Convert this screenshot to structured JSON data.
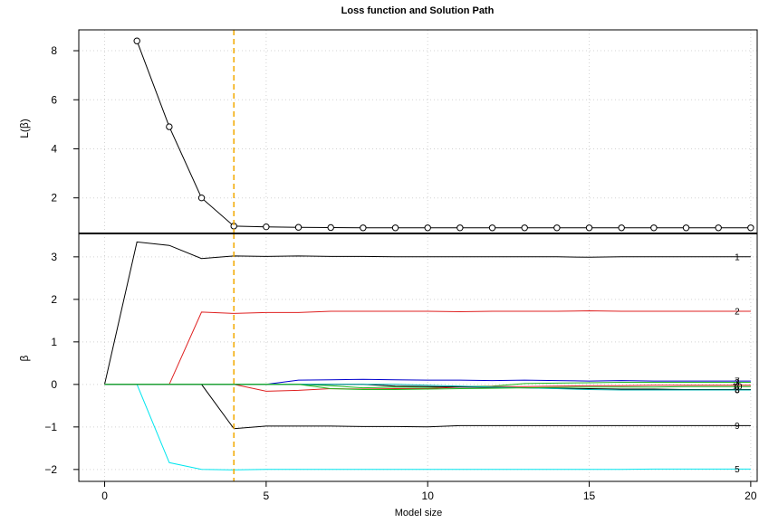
{
  "colors": {
    "axis": "#000000",
    "grid": "#d3d3d3",
    "marker": "#f2a900",
    "loss_line": "#000000"
  },
  "chart_data": [
    {
      "type": "line",
      "panel": "loss",
      "title": "Loss function and Solution Path",
      "xlabel": "",
      "ylabel": "L(β)",
      "xlim": [
        -0.8,
        20.2
      ],
      "ylim": [
        0.55,
        8.85
      ],
      "xticks": [
        0,
        5,
        10,
        15,
        20
      ],
      "yticks": [
        2,
        4,
        6,
        8
      ],
      "grid": true,
      "marker_x": 4,
      "series": [
        {
          "color": "#000000",
          "points": "open-circle",
          "x": [
            1,
            2,
            3,
            4,
            5,
            6,
            7,
            8,
            9,
            10,
            11,
            12,
            13,
            14,
            15,
            16,
            17,
            18,
            19,
            20
          ],
          "values": [
            8.4,
            4.9,
            2.0,
            0.85,
            0.82,
            0.8,
            0.79,
            0.78,
            0.78,
            0.78,
            0.78,
            0.78,
            0.78,
            0.78,
            0.78,
            0.78,
            0.78,
            0.78,
            0.78,
            0.78
          ]
        }
      ]
    },
    {
      "type": "line",
      "panel": "path",
      "title": "",
      "xlabel": "Model size",
      "ylabel": "β",
      "xlim": [
        -0.8,
        20.2
      ],
      "ylim": [
        -2.28,
        3.55
      ],
      "xticks": [
        0,
        5,
        10,
        15,
        20
      ],
      "yticks": [
        -2,
        -1,
        0,
        1,
        2,
        3
      ],
      "grid": true,
      "marker_x": 4,
      "x": [
        0,
        1,
        2,
        3,
        4,
        5,
        6,
        7,
        8,
        9,
        10,
        11,
        12,
        13,
        14,
        15,
        16,
        17,
        18,
        19,
        20
      ],
      "series": [
        {
          "label": "1",
          "color": "#000000",
          "values": [
            0,
            3.35,
            3.27,
            2.96,
            3.02,
            3.01,
            3.02,
            3.01,
            3.01,
            3.0,
            3.0,
            3.0,
            3.0,
            3.0,
            3.0,
            2.99,
            3.0,
            3.0,
            3.0,
            3.0,
            3.0
          ]
        },
        {
          "label": "2",
          "color": "#df2020",
          "values": [
            0,
            0,
            0,
            1.7,
            1.67,
            1.69,
            1.69,
            1.72,
            1.72,
            1.72,
            1.72,
            1.71,
            1.72,
            1.72,
            1.72,
            1.73,
            1.72,
            1.72,
            1.72,
            1.72,
            1.72
          ]
        },
        {
          "label": "9",
          "color": "#000000",
          "values": [
            0,
            0,
            0,
            0,
            -1.04,
            -0.98,
            -0.98,
            -0.98,
            -0.99,
            -0.99,
            -1.0,
            -0.97,
            -0.97,
            -0.97,
            -0.97,
            -0.97,
            -0.97,
            -0.97,
            -0.97,
            -0.97,
            -0.97
          ]
        },
        {
          "label": "5",
          "color": "#00e5ee",
          "values": [
            0,
            0,
            -1.84,
            -2.0,
            -2.01,
            -2.0,
            -2.0,
            -2.0,
            -2.0,
            -2.0,
            -2.0,
            -2.0,
            -2.0,
            -2.0,
            -2.0,
            -2.0,
            -2.0,
            -1.99,
            -1.99,
            -1.99,
            -1.99
          ]
        },
        {
          "label": "7",
          "color": "#0000cd",
          "values": [
            0,
            0,
            0,
            0,
            0,
            0,
            0.1,
            0.11,
            0.12,
            0.11,
            0.1,
            0.1,
            0.09,
            0.1,
            0.09,
            0.08,
            0.09,
            0.08,
            0.08,
            0.08,
            0.08
          ]
        },
        {
          "label": "3",
          "color": "#1eb81e",
          "values": [
            0,
            0,
            0,
            0,
            0,
            0,
            0,
            -0.03,
            -0.08,
            -0.06,
            -0.07,
            -0.05,
            -0.04,
            0.02,
            0.03,
            0.04,
            0.05,
            0.05,
            0.05,
            0.05,
            0.05
          ]
        },
        {
          "label": "4",
          "color": "#df2020",
          "values": [
            0,
            0,
            0,
            0,
            0,
            -0.16,
            -0.14,
            -0.1,
            -0.11,
            -0.1,
            -0.1,
            -0.06,
            -0.05,
            -0.05,
            -0.04,
            -0.03,
            -0.03,
            -0.02,
            -0.02,
            -0.02,
            -0.02
          ]
        },
        {
          "label": "6",
          "color": "#000000",
          "values": [
            0,
            0,
            0,
            0,
            0,
            0,
            0,
            0,
            0,
            -0.04,
            -0.05,
            -0.06,
            -0.07,
            -0.08,
            -0.09,
            -0.1,
            -0.11,
            -0.11,
            -0.12,
            -0.12,
            -0.12
          ]
        },
        {
          "label": "8",
          "color": "#00b0b0",
          "values": [
            0,
            0,
            0,
            0,
            0,
            0,
            0,
            0,
            0,
            0,
            -0.02,
            -0.04,
            -0.06,
            -0.08,
            -0.1,
            -0.12,
            -0.13,
            -0.13,
            -0.13,
            -0.13,
            -0.13
          ]
        },
        {
          "label": "10",
          "color": "#1eb81e",
          "values": [
            0,
            0,
            0,
            0,
            0,
            0,
            0,
            -0.1,
            -0.12,
            -0.12,
            -0.11,
            -0.1,
            -0.09,
            -0.08,
            -0.07,
            -0.06,
            -0.06,
            -0.06,
            -0.05,
            -0.05,
            -0.05
          ]
        }
      ]
    }
  ]
}
